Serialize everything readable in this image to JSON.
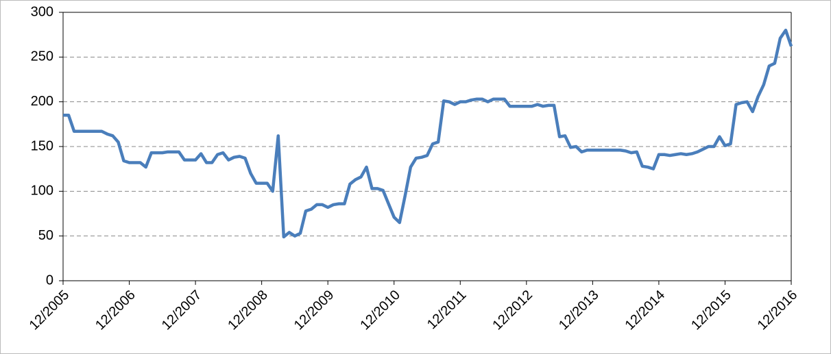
{
  "chart_data": {
    "type": "line",
    "categories": [
      "12/2005",
      null,
      null,
      null,
      null,
      null,
      null,
      null,
      null,
      null,
      null,
      null,
      "12/2006",
      null,
      null,
      null,
      null,
      null,
      null,
      null,
      null,
      null,
      null,
      null,
      "12/2007",
      null,
      null,
      null,
      null,
      null,
      null,
      null,
      null,
      null,
      null,
      null,
      "12/2008",
      null,
      null,
      null,
      null,
      null,
      null,
      null,
      null,
      null,
      null,
      null,
      "12/2009",
      null,
      null,
      null,
      null,
      null,
      null,
      null,
      null,
      null,
      null,
      null,
      "12/2010",
      null,
      null,
      null,
      null,
      null,
      null,
      null,
      null,
      null,
      null,
      null,
      "12/2011",
      null,
      null,
      null,
      null,
      null,
      null,
      null,
      null,
      null,
      null,
      null,
      "12/2012",
      null,
      null,
      null,
      null,
      null,
      null,
      null,
      null,
      null,
      null,
      null,
      "12/2013",
      null,
      null,
      null,
      null,
      null,
      null,
      null,
      null,
      null,
      null,
      null,
      "12/2014",
      null,
      null,
      null,
      null,
      null,
      null,
      null,
      null,
      null,
      null,
      null,
      "12/2015",
      null,
      null,
      null,
      null,
      null,
      null,
      null,
      null,
      null,
      null,
      null,
      "12/2016"
    ],
    "values": [
      185,
      185,
      167,
      167,
      167,
      167,
      167,
      167,
      164,
      162,
      155,
      134,
      132,
      132,
      132,
      127,
      143,
      143,
      143,
      144,
      144,
      144,
      135,
      135,
      135,
      142,
      132,
      132,
      141,
      143,
      135,
      138,
      139,
      137,
      120,
      109,
      109,
      109,
      100,
      162,
      49,
      54,
      50,
      53,
      78,
      80,
      85,
      85,
      82,
      85,
      86,
      86,
      108,
      113,
      116,
      127,
      103,
      103,
      101,
      86,
      71,
      65,
      95,
      127,
      137,
      138,
      140,
      153,
      155,
      201,
      200,
      197,
      200,
      200,
      202,
      203,
      203,
      200,
      203,
      203,
      203,
      195,
      195,
      195,
      195,
      195,
      197,
      195,
      196,
      196,
      161,
      162,
      149,
      150,
      144,
      146,
      146,
      146,
      146,
      146,
      146,
      146,
      145,
      143,
      144,
      128,
      127,
      125,
      141,
      141,
      140,
      141,
      142,
      141,
      142,
      144,
      147,
      150,
      150,
      161,
      151,
      153,
      197,
      199,
      200,
      189,
      206,
      219,
      240,
      243,
      271,
      280,
      262
    ],
    "color": "#4a7ebb",
    "ylim": [
      0,
      300
    ],
    "yticks": [
      0,
      50,
      100,
      150,
      200,
      250,
      300
    ],
    "grid": true
  }
}
